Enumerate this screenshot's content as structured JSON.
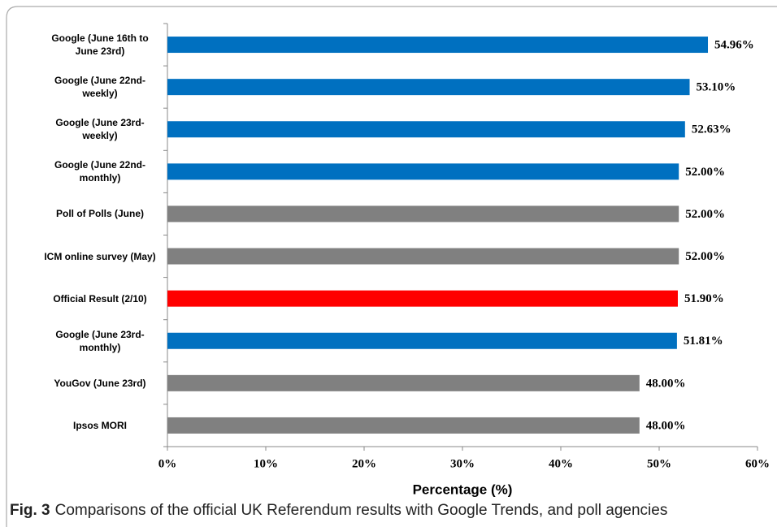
{
  "chart_data": {
    "type": "bar",
    "orientation": "horizontal",
    "categories": [
      "Google (June 16th to June 23rd)",
      "Google (June 22nd-weekly)",
      "Google (June 23rd-weekly)",
      "Google (June 22nd-monthly)",
      "Poll of Polls (June)",
      "ICM online survey (May)",
      "Official Result (2/10)",
      "Google (June 23rd-monthly)",
      "YouGov (June 23rd)",
      "Ipsos MORI"
    ],
    "values": [
      54.96,
      53.1,
      52.63,
      52.0,
      52.0,
      52.0,
      51.9,
      51.81,
      48.0,
      48.0
    ],
    "value_labels": [
      "54.96%",
      "53.10%",
      "52.63%",
      "52.00%",
      "52.00%",
      "52.00%",
      "51.90%",
      "51.81%",
      "48.00%",
      "48.00%"
    ],
    "colors": [
      "#0070c0",
      "#0070c0",
      "#0070c0",
      "#0070c0",
      "#808080",
      "#808080",
      "#ff0000",
      "#0070c0",
      "#808080",
      "#808080"
    ],
    "xlim": [
      0,
      60
    ],
    "xticks": [
      {
        "value": 0,
        "label": "0%"
      },
      {
        "value": 10,
        "label": "10%"
      },
      {
        "value": 20,
        "label": "20%"
      },
      {
        "value": 30,
        "label": "30%"
      },
      {
        "value": 40,
        "label": "40%"
      },
      {
        "value": 50,
        "label": "50%"
      },
      {
        "value": 60,
        "label": "60%"
      }
    ],
    "xlabel": "Percentage (%)"
  },
  "caption": {
    "label": "Fig. 3",
    "text": "Comparisons of the official UK Referendum results with Google Trends, and poll agencies"
  }
}
